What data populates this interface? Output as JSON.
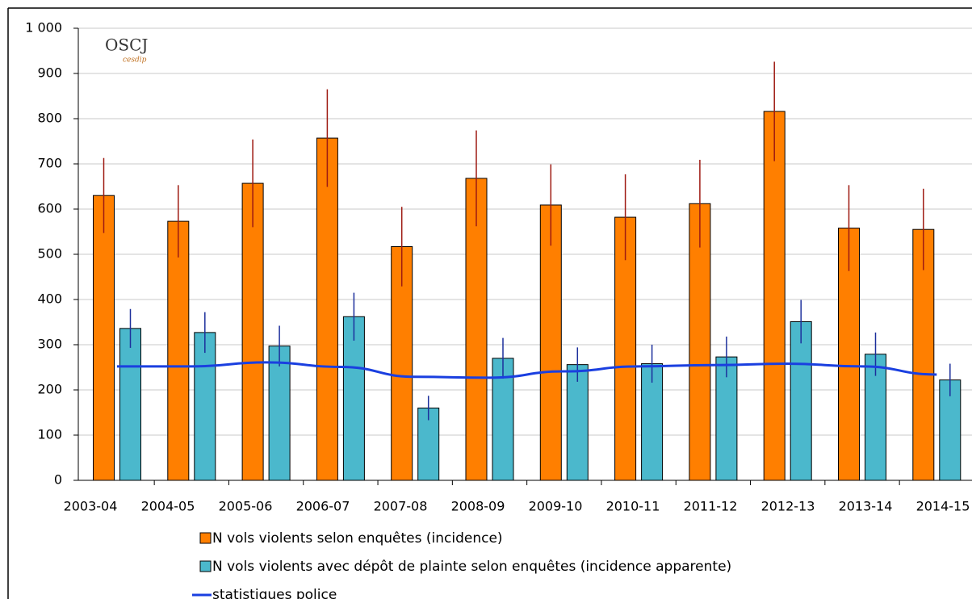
{
  "chart_data": {
    "type": "bar-line",
    "annotations": [
      "OSCJ",
      "cesdip"
    ],
    "categories": [
      "2003-04",
      "2004-05",
      "2005-06",
      "2006-07",
      "2007-08",
      "2008-09",
      "2009-10",
      "2010-11",
      "2011-12",
      "2012-13",
      "2013-14",
      "2014-15"
    ],
    "series": [
      {
        "name": "N vols violents selon enquêtes (incidence)",
        "type": "bar",
        "color": "#ff7f00",
        "error_color": "#9e1a12",
        "values": [
          630,
          573,
          657,
          757,
          517,
          668,
          609,
          582,
          612,
          816,
          558,
          555
        ],
        "errors": [
          83,
          80,
          97,
          108,
          88,
          106,
          90,
          95,
          97,
          110,
          95,
          90
        ]
      },
      {
        "name": "N vols violents avec dépôt de plainte selon enquêtes (incidence apparente)",
        "type": "bar",
        "color": "#4bb8cc",
        "error_color": "#1c2f9c",
        "values": [
          336,
          327,
          297,
          362,
          160,
          270,
          256,
          258,
          273,
          351,
          279,
          222
        ],
        "errors": [
          43,
          45,
          45,
          53,
          27,
          45,
          38,
          42,
          45,
          48,
          48,
          36
        ]
      },
      {
        "name": "statistiques police",
        "type": "line",
        "color": "#1a3fe0",
        "values": [
          252,
          252,
          261,
          251,
          229,
          227,
          241,
          252,
          255,
          258,
          252,
          234
        ]
      }
    ],
    "ylim": [
      0,
      1000
    ],
    "yticks": [
      0,
      100,
      200,
      300,
      400,
      500,
      600,
      700,
      800,
      900,
      {
        "value": 1000,
        "label": "1 000"
      }
    ],
    "grid": true
  }
}
